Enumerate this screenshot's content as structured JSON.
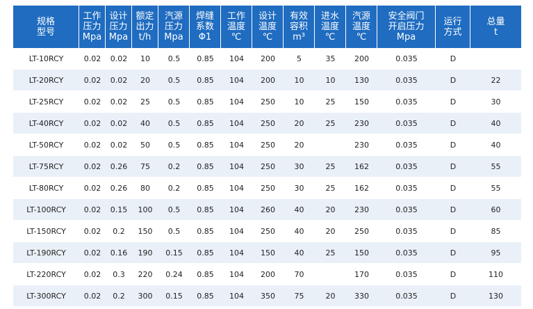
{
  "header": {
    "cols": [
      [
        "规格",
        "型号"
      ],
      [
        "工作",
        "压力",
        "Mpa"
      ],
      [
        "设计",
        "压力",
        "Mpa"
      ],
      [
        "额定",
        "出力",
        "t/h"
      ],
      [
        "汽源",
        "压力",
        "Mpa"
      ],
      [
        "焊缝",
        "系数",
        "Φ1"
      ],
      [
        "工作",
        "温度",
        "℃"
      ],
      [
        "设计",
        "温度",
        "℃"
      ],
      [
        "有效",
        "容积",
        "m³"
      ],
      [
        "进水",
        "温度",
        "℃"
      ],
      [
        "汽源",
        "温度",
        "℃"
      ],
      [
        "安全阀门",
        "开启压力",
        "Mpa"
      ],
      [
        "运行",
        "方式"
      ],
      [
        "总量",
        "t"
      ]
    ]
  },
  "rows": [
    [
      "LT-10RCY",
      "0.02",
      "0.02",
      "10",
      "0.5",
      "0.85",
      "104",
      "200",
      "5",
      "35",
      "200",
      "0.035",
      "D",
      ""
    ],
    [
      "LT-20RCY",
      "0.02",
      "0.02",
      "20",
      "0.5",
      "0.85",
      "104",
      "200",
      "10",
      "10",
      "130",
      "0.035",
      "D",
      "22"
    ],
    [
      "LT-25RCY",
      "0.02",
      "0.02",
      "25",
      "0.5",
      "0.85",
      "104",
      "250",
      "10",
      "25",
      "150",
      "0.035",
      "D",
      "30"
    ],
    [
      "LT-40RCY",
      "0.02",
      "0.02",
      "40",
      "0.5",
      "0.85",
      "104",
      "250",
      "20",
      "25",
      "230",
      "0.035",
      "D",
      "40"
    ],
    [
      "LT-50RCY",
      "0.02",
      "0.02",
      "50",
      "0.5",
      "0.85",
      "104",
      "250",
      "20",
      "",
      "230",
      "0.035",
      "D",
      "40"
    ],
    [
      "LT-75RCY",
      "0.02",
      "0.26",
      "75",
      "0.2",
      "0.85",
      "104",
      "250",
      "30",
      "25",
      "162",
      "0.035",
      "D",
      "55"
    ],
    [
      "LT-80RCY",
      "0.02",
      "0.26",
      "80",
      "0.2",
      "0.85",
      "104",
      "250",
      "30",
      "25",
      "162",
      "0.035",
      "D",
      "55"
    ],
    [
      "LT-100RCY",
      "0.02",
      "0.15",
      "100",
      "0.5",
      "0.85",
      "104",
      "260",
      "40",
      "20",
      "230",
      "0.035",
      "D",
      "60"
    ],
    [
      "LT-150RCY",
      "0.02",
      "0.2",
      "150",
      "0.5",
      "0.85",
      "104",
      "250",
      "40",
      "20",
      "250",
      "0.035",
      "D",
      "85"
    ],
    [
      "LT-190RCY",
      "0.02",
      "0.16",
      "190",
      "0.15",
      "0.85",
      "104",
      "150",
      "40",
      "25",
      "150",
      "0.035",
      "D",
      "95"
    ],
    [
      "LT-220RCY",
      "0.02",
      "0.3",
      "220",
      "0.24",
      "0.85",
      "104",
      "200",
      "70",
      "",
      "170",
      "0.035",
      "D",
      "110"
    ],
    [
      "LT-300RCY",
      "0.02",
      "0.2",
      "300",
      "0.15",
      "0.85",
      "104",
      "350",
      "75",
      "20",
      "330",
      "0.035",
      "D",
      "130"
    ]
  ]
}
